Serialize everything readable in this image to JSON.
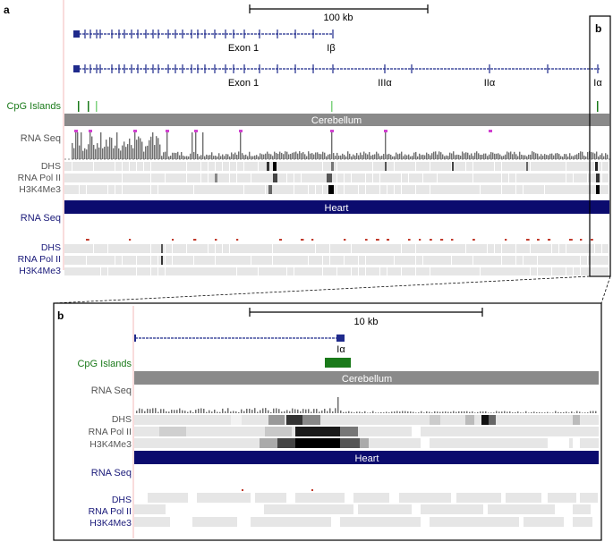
{
  "colors": {
    "gene": "#1f2a8c",
    "cpg": "#1a7a1a",
    "cpg_light": "#7fd37f",
    "cerebellum_bar": "#8a8a8a",
    "heart_bar": "#0b0b6e",
    "track_bg": "#e6e6e6",
    "rna_cerebellum": "#6e6e6e",
    "magenta": "#d040d0",
    "red": "#c0392b",
    "label_grey": "#555555",
    "label_navy": "#1a1a7a",
    "label_green": "#1a7a1a",
    "position_line": "#f3b8b8"
  },
  "panel_a": {
    "letter": "a",
    "scale_label": "100 kb",
    "transcript1": {
      "labels": [
        "Exon 1",
        "Iβ"
      ]
    },
    "transcript2": {
      "labels": [
        "Exon 1",
        "IIIα",
        "IIα",
        "Iα"
      ]
    },
    "cpg_label": "CpG Islands",
    "cerebellum_label": "Cerebellum",
    "rna_seq_label": "RNA Seq",
    "dhs_label": "DHS",
    "pol2_label": "RNA Pol II",
    "h3k4_label": "H3K4Me3",
    "heart_rna_label": "RNA Seq",
    "heart_label": "Heart",
    "heart_dhs_label": "DHS",
    "heart_pol2_label": "RNA Pol II",
    "heart_h3k4_label": "H3K4Me3",
    "zoom_box_letter": "b"
  },
  "panel_b": {
    "letter": "b",
    "scale_label": "10 kb",
    "exon_label": "Iα",
    "cpg_label": "CpG Islands",
    "cerebellum_label": "Cerebellum",
    "rna_seq_label": "RNA Seq",
    "dhs_label": "DHS",
    "pol2_label": "RNA Pol II",
    "h3k4_label": "H3K4Me3",
    "heart_rna_label": "RNA Seq",
    "heart_label": "Heart",
    "heart_dhs_label": "DHS",
    "heart_pol2_label": "RNA Pol II",
    "heart_h3k4_label": "H3K4Me3"
  }
}
